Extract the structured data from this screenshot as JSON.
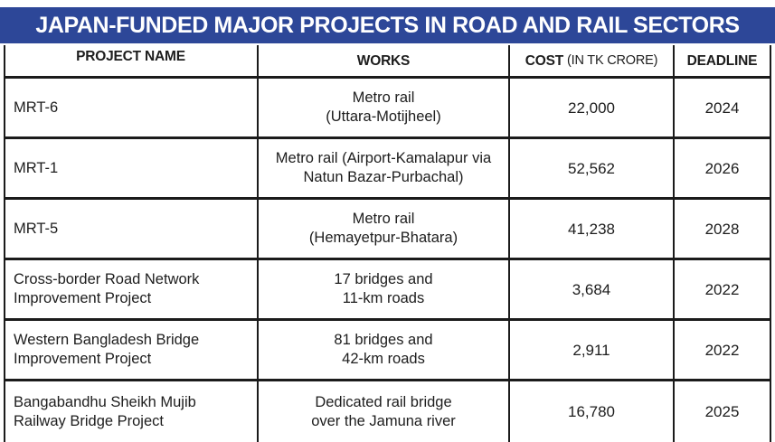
{
  "banner": {
    "title": "JAPAN-FUNDED MAJOR PROJECTS IN ROAD AND RAIL SECTORS"
  },
  "table": {
    "headers": {
      "project": "PROJECT NAME",
      "works": "WORKS",
      "cost": "COST",
      "cost_sub": "(IN TK CRORE)",
      "deadline": "DEADLINE"
    },
    "rows": [
      {
        "name": "MRT-6",
        "works1": "Metro rail",
        "works2": "(Uttara-Motijheel)",
        "cost": "22,000",
        "deadline": "2024"
      },
      {
        "name": "MRT-1",
        "works1": "Metro rail (Airport-Kamalapur via",
        "works2": "Natun Bazar-Purbachal)",
        "cost": "52,562",
        "deadline": "2026"
      },
      {
        "name": "MRT-5",
        "works1": "Metro rail",
        "works2": "(Hemayetpur-Bhatara)",
        "cost": "41,238",
        "deadline": "2028"
      },
      {
        "name": "Cross-border Road Network Improvement Project",
        "works1": "17 bridges and",
        "works2": "11-km roads",
        "cost": "3,684",
        "deadline": "2022"
      },
      {
        "name": "Western Bangladesh Bridge Improvement Project",
        "works1": "81 bridges  and",
        "works2": "42-km roads",
        "cost": "2,911",
        "deadline": "2022"
      },
      {
        "name": "Bangabandhu Sheikh Mujib Railway Bridge Project",
        "works1": "Dedicated rail bridge",
        "works2": "over the Jamuna river",
        "cost": "16,780",
        "deadline": "2025"
      }
    ]
  },
  "chart_data": {
    "type": "table",
    "title": "JAPAN-FUNDED MAJOR PROJECTS IN ROAD AND RAIL SECTORS",
    "columns": [
      "PROJECT NAME",
      "WORKS",
      "COST (IN TK CRORE)",
      "DEADLINE"
    ],
    "rows": [
      [
        "MRT-6",
        "Metro rail (Uttara-Motijheel)",
        "22,000",
        "2024"
      ],
      [
        "MRT-1",
        "Metro rail (Airport-Kamalapur via Natun Bazar-Purbachal)",
        "52,562",
        "2026"
      ],
      [
        "MRT-5",
        "Metro rail (Hemayetpur-Bhatara)",
        "41,238",
        "2028"
      ],
      [
        "Cross-border Road Network Improvement Project",
        "17 bridges and 11-km roads",
        "3,684",
        "2022"
      ],
      [
        "Western Bangladesh Bridge Improvement Project",
        "81 bridges and 42-km roads",
        "2,911",
        "2022"
      ],
      [
        "Bangabandhu Sheikh Mujib Railway Bridge Project",
        "Dedicated rail bridge over the Jamuna river",
        "16,780",
        "2025"
      ]
    ],
    "costs_numeric_tk_crore": [
      22000,
      52562,
      41238,
      3684,
      2911,
      16780
    ],
    "deadlines_numeric": [
      2024,
      2026,
      2028,
      2022,
      2022,
      2025
    ]
  },
  "colors": {
    "banner_blue": "#2d4798",
    "border_black": "#1b1b1b",
    "text_black": "#1d1d1d",
    "background": "#ffffff"
  }
}
